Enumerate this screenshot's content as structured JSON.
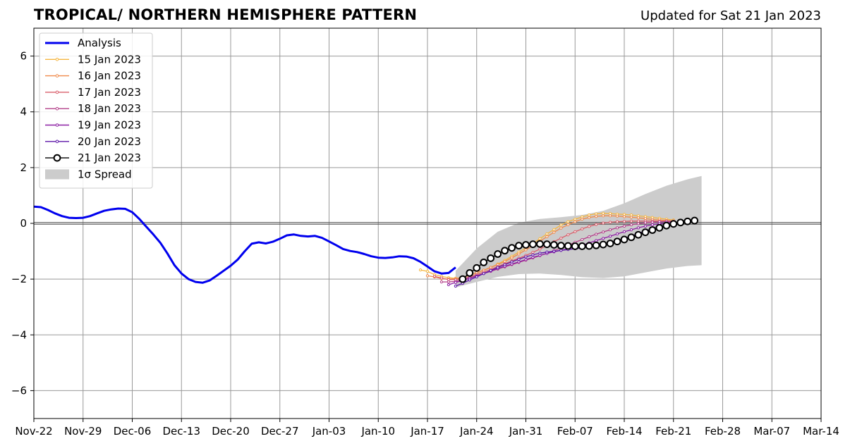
{
  "title": "TROPICAL/ NORTHERN HEMISPHERE PATTERN",
  "subtitle": "Updated for Sat 21 Jan 2023",
  "colors": {
    "analysis": "#0000ee",
    "spread": "#cccccc",
    "grid": "#999999",
    "zero_line": "#555555"
  },
  "chart_data": {
    "type": "line",
    "xlim": [
      "2022-11-22",
      "2023-03-14"
    ],
    "ylim": [
      -7,
      7
    ],
    "x_tick_labels": [
      "Nov-22",
      "Nov-29",
      "Dec-06",
      "Dec-13",
      "Dec-20",
      "Dec-27",
      "Jan-03",
      "Jan-10",
      "Jan-17",
      "Jan-24",
      "Jan-31",
      "Feb-07",
      "Feb-14",
      "Feb-21",
      "Feb-28",
      "Mar-07",
      "Mar-14"
    ],
    "y_ticks": [
      -6,
      -4,
      -2,
      0,
      2,
      4,
      6
    ],
    "y_tick_labels": [
      "−6",
      "−4",
      "−2",
      "0",
      "2",
      "4",
      "6"
    ],
    "grid": true,
    "legend_position": "top-left",
    "analysis": {
      "name": "Analysis",
      "color": "#0000ee",
      "points": [
        [
          "2022-11-22",
          0.6
        ],
        [
          "2022-11-23",
          0.58
        ],
        [
          "2022-11-24",
          0.48
        ],
        [
          "2022-11-25",
          0.36
        ],
        [
          "2022-11-26",
          0.26
        ],
        [
          "2022-11-27",
          0.2
        ],
        [
          "2022-11-28",
          0.19
        ],
        [
          "2022-11-29",
          0.2
        ],
        [
          "2022-11-30",
          0.26
        ],
        [
          "2022-12-01",
          0.36
        ],
        [
          "2022-12-02",
          0.45
        ],
        [
          "2022-12-03",
          0.5
        ],
        [
          "2022-12-04",
          0.53
        ],
        [
          "2022-12-05",
          0.52
        ],
        [
          "2022-12-06",
          0.4
        ],
        [
          "2022-12-07",
          0.16
        ],
        [
          "2022-12-08",
          -0.12
        ],
        [
          "2022-12-09",
          -0.4
        ],
        [
          "2022-12-10",
          -0.7
        ],
        [
          "2022-12-11",
          -1.08
        ],
        [
          "2022-12-12",
          -1.5
        ],
        [
          "2022-12-13",
          -1.8
        ],
        [
          "2022-12-14",
          -2.0
        ],
        [
          "2022-12-15",
          -2.1
        ],
        [
          "2022-12-16",
          -2.13
        ],
        [
          "2022-12-17",
          -2.05
        ],
        [
          "2022-12-18",
          -1.88
        ],
        [
          "2022-12-19",
          -1.7
        ],
        [
          "2022-12-20",
          -1.52
        ],
        [
          "2022-12-21",
          -1.3
        ],
        [
          "2022-12-22",
          -1.0
        ],
        [
          "2022-12-23",
          -0.73
        ],
        [
          "2022-12-24",
          -0.68
        ],
        [
          "2022-12-25",
          -0.72
        ],
        [
          "2022-12-26",
          -0.66
        ],
        [
          "2022-12-27",
          -0.55
        ],
        [
          "2022-12-28",
          -0.43
        ],
        [
          "2022-12-29",
          -0.4
        ],
        [
          "2022-12-30",
          -0.45
        ],
        [
          "2022-12-31",
          -0.47
        ],
        [
          "2023-01-01",
          -0.45
        ],
        [
          "2023-01-02",
          -0.52
        ],
        [
          "2023-01-03",
          -0.65
        ],
        [
          "2023-01-04",
          -0.78
        ],
        [
          "2023-01-05",
          -0.92
        ],
        [
          "2023-01-06",
          -0.99
        ],
        [
          "2023-01-07",
          -1.03
        ],
        [
          "2023-01-08",
          -1.1
        ],
        [
          "2023-01-09",
          -1.18
        ],
        [
          "2023-01-10",
          -1.23
        ],
        [
          "2023-01-11",
          -1.24
        ],
        [
          "2023-01-12",
          -1.22
        ],
        [
          "2023-01-13",
          -1.18
        ],
        [
          "2023-01-14",
          -1.19
        ],
        [
          "2023-01-15",
          -1.25
        ],
        [
          "2023-01-16",
          -1.38
        ],
        [
          "2023-01-17",
          -1.55
        ],
        [
          "2023-01-18",
          -1.72
        ],
        [
          "2023-01-19",
          -1.8
        ],
        [
          "2023-01-20",
          -1.78
        ],
        [
          "2023-01-21",
          -1.58
        ]
      ]
    },
    "spread": {
      "name": "1σ Spread",
      "x": [
        "2023-01-21",
        "2023-01-24",
        "2023-01-27",
        "2023-01-30",
        "2023-02-02",
        "2023-02-05",
        "2023-02-08",
        "2023-02-11",
        "2023-02-14",
        "2023-02-17",
        "2023-02-20",
        "2023-02-23",
        "2023-02-25"
      ],
      "upper": [
        -1.7,
        -0.9,
        -0.3,
        0.02,
        0.16,
        0.22,
        0.3,
        0.45,
        0.72,
        1.05,
        1.35,
        1.58,
        1.7
      ],
      "lower": [
        -2.3,
        -2.1,
        -1.92,
        -1.82,
        -1.8,
        -1.85,
        -1.93,
        -1.96,
        -1.9,
        -1.76,
        -1.62,
        -1.53,
        -1.5
      ]
    },
    "series": [
      {
        "name": "15 Jan 2023",
        "color": "#f5b641",
        "start": "2023-01-16",
        "values": [
          -1.67,
          -1.72,
          -1.84,
          -1.9,
          -1.95,
          -1.97,
          -1.95,
          -1.86,
          -1.78,
          -1.68,
          -1.58,
          -1.46,
          -1.33,
          -1.18,
          -1.03,
          -0.88,
          -0.72,
          -0.55,
          -0.38,
          -0.22,
          -0.06,
          0.06,
          0.15,
          0.23,
          0.3,
          0.34,
          0.36,
          0.35,
          0.33,
          0.32,
          0.3,
          0.27,
          0.24,
          0.21,
          0.18,
          0.15,
          0.12
        ]
      },
      {
        "name": "16 Jan 2023",
        "color": "#f08a4b",
        "start": "2023-01-17",
        "values": [
          -1.88,
          -1.92,
          -1.98,
          -2.0,
          -1.99,
          -1.93,
          -1.86,
          -1.77,
          -1.68,
          -1.58,
          -1.48,
          -1.37,
          -1.24,
          -1.1,
          -0.95,
          -0.8,
          -0.64,
          -0.48,
          -0.32,
          -0.17,
          -0.05,
          0.06,
          0.15,
          0.21,
          0.25,
          0.27,
          0.27,
          0.26,
          0.24,
          0.22,
          0.2,
          0.17,
          0.14,
          0.12,
          0.1,
          0.08
        ]
      },
      {
        "name": "17 Jan 2023",
        "color": "#d95e6a",
        "start": "2023-01-18",
        "values": [
          -1.9,
          -1.96,
          -2.02,
          -2.02,
          -1.98,
          -1.92,
          -1.84,
          -1.75,
          -1.65,
          -1.55,
          -1.45,
          -1.35,
          -1.25,
          -1.15,
          -1.04,
          -0.92,
          -0.79,
          -0.66,
          -0.53,
          -0.41,
          -0.3,
          -0.2,
          -0.11,
          -0.04,
          0.01,
          0.04,
          0.06,
          0.07,
          0.08,
          0.08,
          0.08,
          0.08,
          0.07,
          0.07,
          0.07
        ]
      },
      {
        "name": "18 Jan 2023",
        "color": "#b3408a",
        "start": "2023-01-19",
        "values": [
          -2.1,
          -2.1,
          -2.08,
          -2.03,
          -1.96,
          -1.88,
          -1.8,
          -1.72,
          -1.64,
          -1.56,
          -1.48,
          -1.4,
          -1.32,
          -1.24,
          -1.16,
          -1.07,
          -0.98,
          -0.88,
          -0.78,
          -0.68,
          -0.58,
          -0.48,
          -0.39,
          -0.31,
          -0.23,
          -0.16,
          -0.1,
          -0.05,
          -0.01,
          0.02,
          0.04,
          0.06,
          0.07,
          0.08
        ]
      },
      {
        "name": "19 Jan 2023",
        "color": "#8c1fa3",
        "start": "2023-01-20",
        "values": [
          -2.2,
          -2.12,
          -2.05,
          -1.97,
          -1.89,
          -1.8,
          -1.71,
          -1.62,
          -1.54,
          -1.46,
          -1.38,
          -1.3,
          -1.22,
          -1.15,
          -1.08,
          -1.02,
          -0.97,
          -0.91,
          -0.85,
          -0.78,
          -0.7,
          -0.62,
          -0.54,
          -0.46,
          -0.38,
          -0.3,
          -0.23,
          -0.16,
          -0.1,
          -0.05,
          -0.01,
          0.02,
          0.04
        ]
      },
      {
        "name": "20 Jan 2023",
        "color": "#5c15a8",
        "start": "2023-01-21",
        "values": [
          -2.25,
          -2.15,
          -2.03,
          -1.92,
          -1.8,
          -1.69,
          -1.58,
          -1.48,
          -1.38,
          -1.29,
          -1.2,
          -1.13,
          -1.07,
          -1.03,
          -1.0,
          -0.97,
          -0.94,
          -0.91,
          -0.88,
          -0.84,
          -0.8,
          -0.75,
          -0.69,
          -0.62,
          -0.54,
          -0.45,
          -0.36,
          -0.27,
          -0.19,
          -0.12,
          -0.06,
          -0.01
        ]
      },
      {
        "name": "21 Jan 2023",
        "color": "#000000",
        "start": "2023-01-22",
        "big_markers": true,
        "values": [
          -2.0,
          -1.78,
          -1.6,
          -1.4,
          -1.25,
          -1.1,
          -0.98,
          -0.88,
          -0.8,
          -0.77,
          -0.75,
          -0.74,
          -0.75,
          -0.77,
          -0.8,
          -0.81,
          -0.82,
          -0.82,
          -0.81,
          -0.79,
          -0.76,
          -0.72,
          -0.65,
          -0.58,
          -0.5,
          -0.41,
          -0.32,
          -0.24,
          -0.16,
          -0.08,
          -0.02,
          0.03,
          0.07,
          0.1
        ]
      }
    ]
  }
}
